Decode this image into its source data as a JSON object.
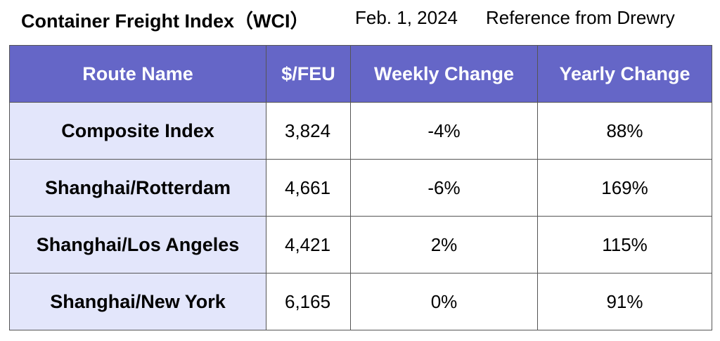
{
  "header": {
    "title": "Container Freight Index（WCI）",
    "date": "Feb. 1, 2024",
    "source": "Reference from Drewry"
  },
  "colors": {
    "header_bg": "#6566c7",
    "header_text": "#ffffff",
    "route_cell_bg": "#e3e6fb",
    "border": "#555555"
  },
  "chart_data": {
    "type": "table",
    "columns": [
      "Route Name",
      "$/FEU",
      "Weekly Change",
      "Yearly Change"
    ],
    "rows": [
      [
        "Composite Index",
        "3,824",
        "-4%",
        "88%"
      ],
      [
        "Shanghai/Rotterdam",
        "4,661",
        "-6%",
        "169%"
      ],
      [
        "Shanghai/Los Angeles",
        "4,421",
        "2%",
        "115%"
      ],
      [
        "Shanghai/New York",
        "6,165",
        "0%",
        "91%"
      ]
    ]
  }
}
